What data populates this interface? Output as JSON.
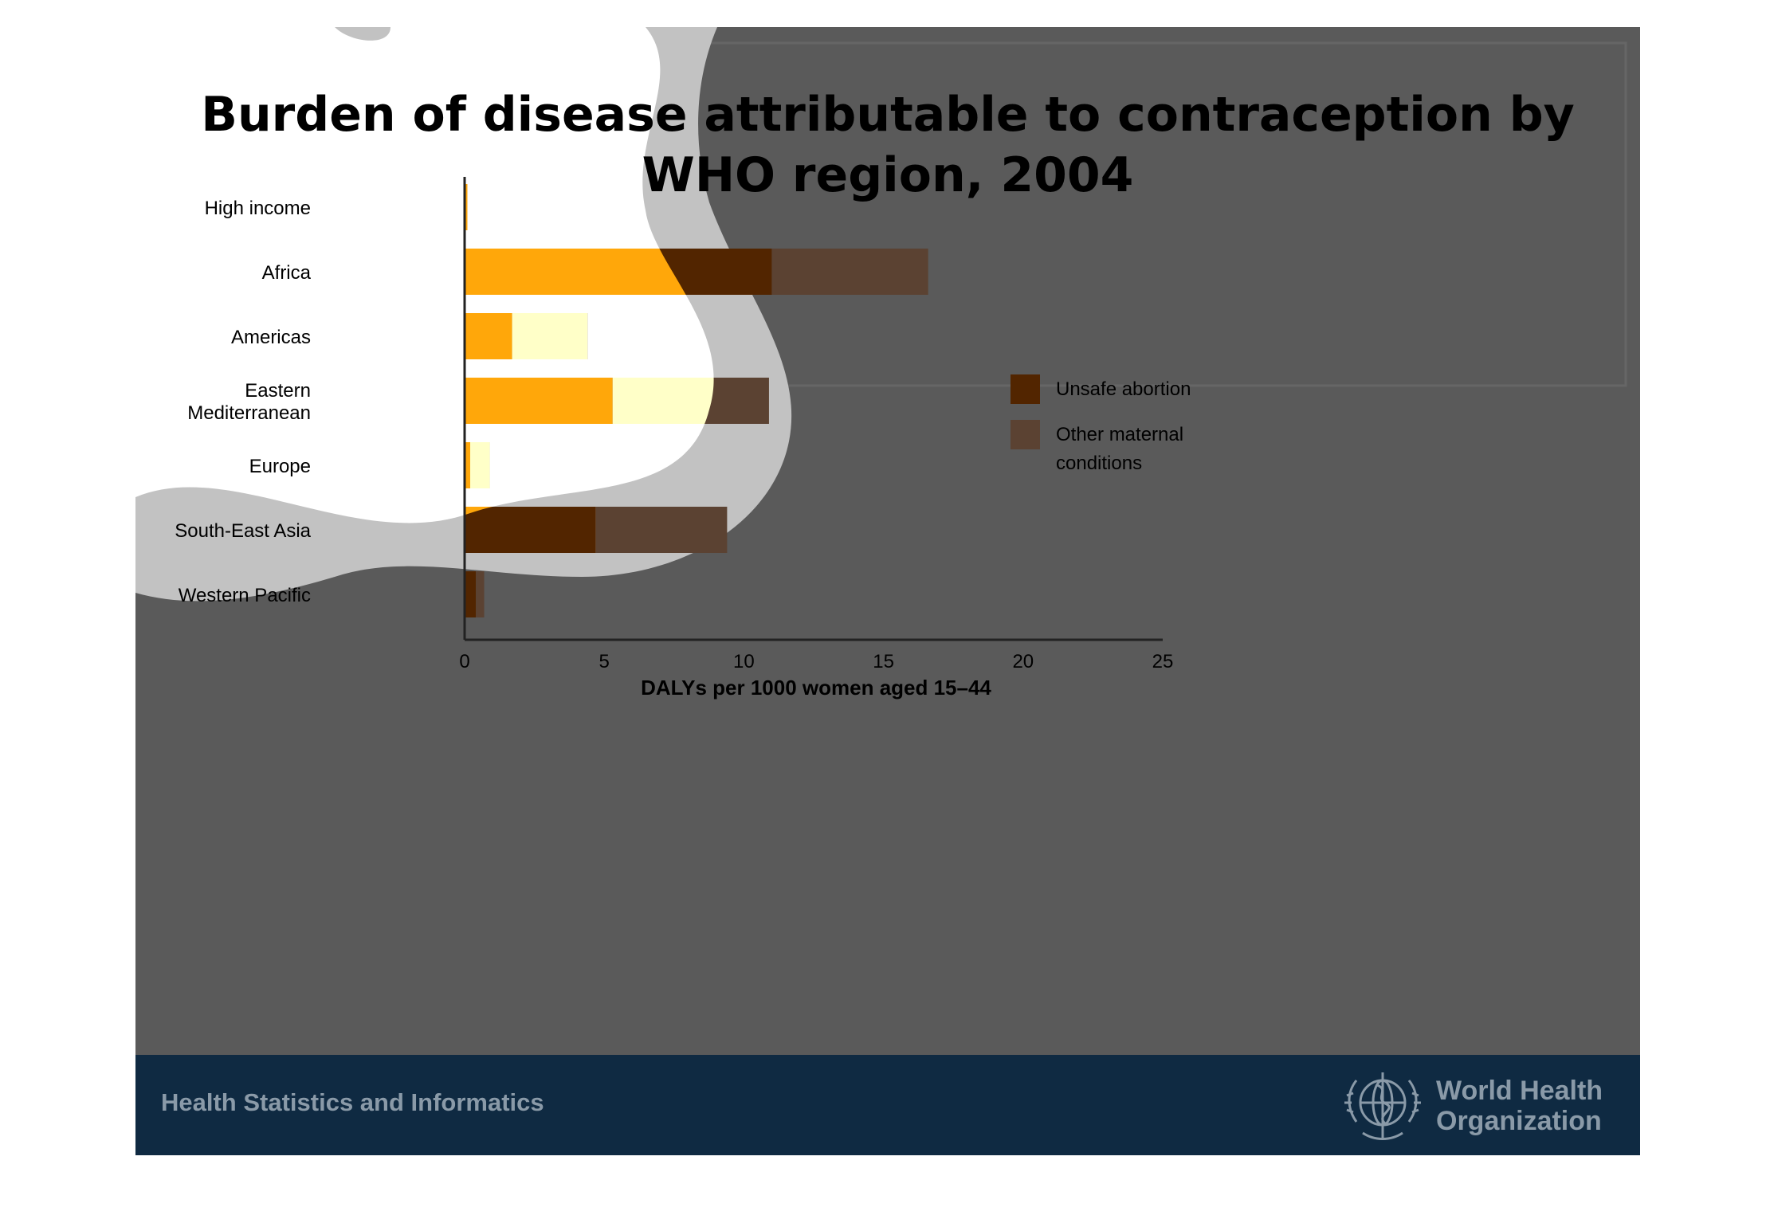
{
  "chart_data": {
    "type": "bar",
    "orientation": "horizontal",
    "stacked": true,
    "title": "Burden of disease attributable to contraception by WHO region, 2004",
    "categories": [
      "High income",
      "Africa",
      "Americas",
      "Eastern Mediterranean",
      "Europe",
      "South-East Asia",
      "Western Pacific"
    ],
    "category_lines": [
      [
        "High income"
      ],
      [
        "Africa"
      ],
      [
        "Americas"
      ],
      [
        "Eastern",
        "Mediterranean"
      ],
      [
        "Europe"
      ],
      [
        "South-East Asia"
      ],
      [
        "Western Pacific"
      ]
    ],
    "series": [
      {
        "name": "Unsafe abortion",
        "values": [
          0.1,
          11.0,
          1.7,
          5.3,
          0.2,
          4.7,
          0.4
        ],
        "color": "#522500"
      },
      {
        "name": "Other maternal conditions",
        "values": [
          0.0,
          5.6,
          2.7,
          5.6,
          0.7,
          4.7,
          0.3
        ],
        "color": "#5b4232"
      }
    ],
    "xlabel": "DALYs per 1000 women aged 15–44",
    "xlim": [
      0,
      25
    ],
    "xticks": [
      0,
      5,
      10,
      15,
      20,
      25
    ],
    "legend_position": "right",
    "legend_lines": [
      [
        "Unsafe abortion"
      ],
      [
        "Other maternal",
        "conditions"
      ]
    ],
    "grid": false
  },
  "footer": {
    "program": "Health Statistics and Informatics",
    "organization_line1": "World Health",
    "organization_line2": "Organization"
  },
  "colors": {
    "background": "#5a5a5a",
    "footer": "#0f2a42",
    "footer_text": "#8a9aa8",
    "highlight_fill": "#ffa70a",
    "highlight_fill_light": "#ffffc8"
  }
}
